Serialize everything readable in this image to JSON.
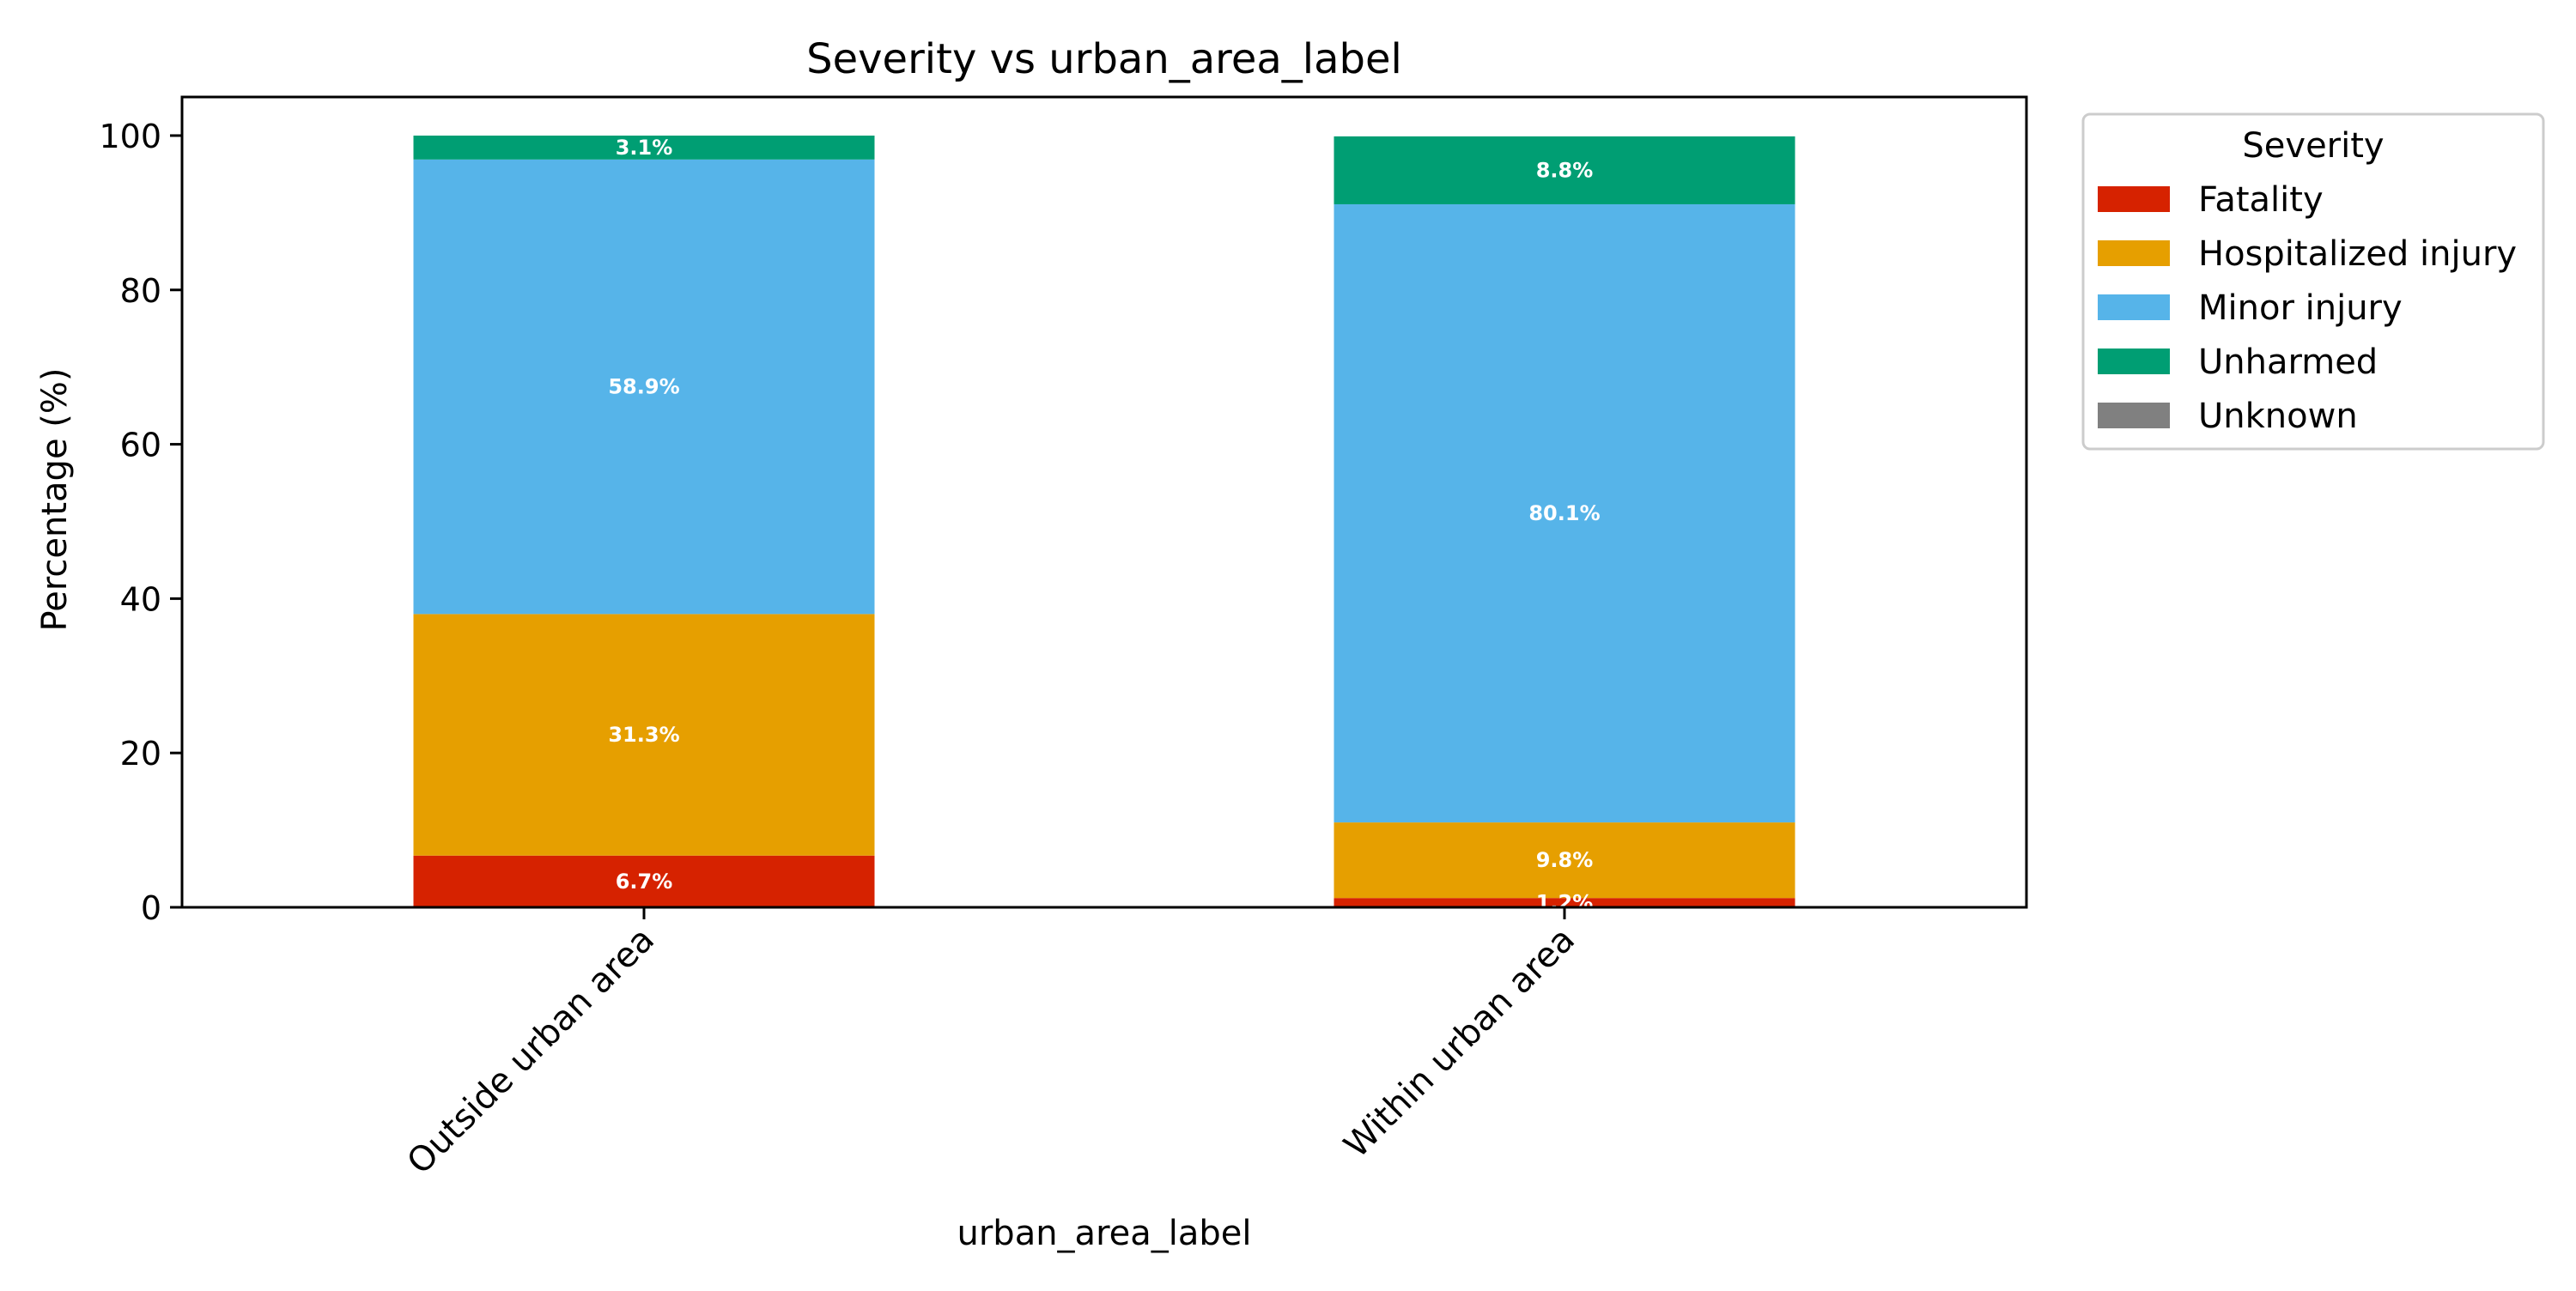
{
  "chart_data": {
    "type": "bar",
    "stacked": true,
    "title": "Severity vs urban_area_label",
    "xlabel": "urban_area_label",
    "ylabel": "Percentage (%)",
    "ylim": [
      0,
      105
    ],
    "yticks": [
      0,
      20,
      40,
      60,
      80,
      100
    ],
    "categories": [
      "Outside urban area",
      "Within urban area"
    ],
    "series": [
      {
        "name": "Fatality",
        "color": "#d62200",
        "values": [
          6.7,
          1.2
        ],
        "labels": [
          "6.7%",
          "1.2%"
        ]
      },
      {
        "name": "Hospitalized injury",
        "color": "#e69f00",
        "values": [
          31.3,
          9.8
        ],
        "labels": [
          "31.3%",
          "9.8%"
        ]
      },
      {
        "name": "Minor injury",
        "color": "#56b4e9",
        "values": [
          58.9,
          80.1
        ],
        "labels": [
          "58.9%",
          "80.1%"
        ]
      },
      {
        "name": "Unharmed",
        "color": "#009e73",
        "values": [
          3.1,
          8.8
        ],
        "labels": [
          "3.1%",
          "8.8%"
        ]
      },
      {
        "name": "Unknown",
        "color": "#808080",
        "values": [
          0,
          0
        ],
        "labels": [
          "",
          ""
        ]
      }
    ],
    "legend": {
      "title": "Severity",
      "placement": "outside-right-top"
    },
    "grid": false
  }
}
